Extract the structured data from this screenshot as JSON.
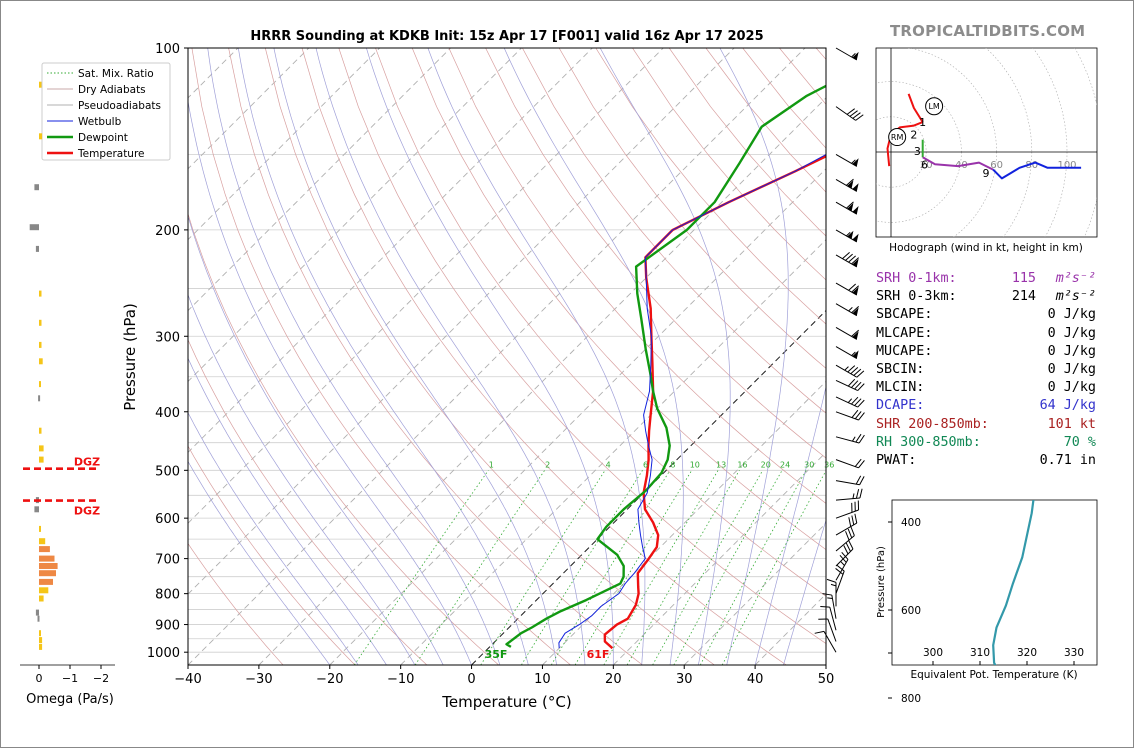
{
  "title": "HRRR Sounding at KDKB Init: 15z Apr 17 [F001] valid 16z Apr 17 2025",
  "brand": "TROPICALTIDBITS.COM",
  "colors": {
    "temperature": "#ee1111",
    "dewpoint": "#119911",
    "wetbulb": "#1122dd",
    "dry_adiabat": "#d8a0a0",
    "pseudoadiabat": "#a0a0d8",
    "mix_ratio": "#33aa33",
    "srh1": "#9933aa",
    "dcape": "#3333cc",
    "shr": "#aa2222",
    "rh": "#118855",
    "theta_e": "#3399aa",
    "omega_yellow": "#f5c518",
    "omega_orange": "#ee8844",
    "omega_gray": "#888888",
    "dgz": "#ee1111"
  },
  "chart_data": [
    {
      "id": "skewt",
      "type": "line",
      "xlabel": "Temperature (°C)",
      "ylabel": "Pressure (hPa)",
      "xlim": [
        -40,
        50
      ],
      "ylim": [
        1050,
        100
      ],
      "yscale": "log",
      "x_ticks": [
        -40,
        -30,
        -20,
        -10,
        0,
        10,
        20,
        30,
        40,
        50
      ],
      "x_tick_labels": [
        "−40",
        "−30",
        "−20",
        "−10",
        "0",
        "10",
        "20",
        "30",
        "40",
        "50"
      ],
      "y_ticks": [
        100,
        200,
        300,
        400,
        500,
        600,
        700,
        800,
        900,
        1000
      ],
      "y_tick_labels": [
        "100",
        "200",
        "300",
        "400",
        "500",
        "600",
        "700",
        "800",
        "900",
        "1000"
      ],
      "legend": {
        "position": "top-left",
        "entries": [
          "Sat. Mix. Ratio",
          "Dry Adiabats",
          "Pseudoadiabats",
          "Wetbulb",
          "Dewpoint",
          "Temperature"
        ]
      },
      "mix_ratio_labels": [
        "1",
        "2",
        "4",
        "6",
        "8",
        "10",
        "13",
        "16",
        "20",
        "24",
        "30",
        "36"
      ],
      "series": [
        {
          "name": "Temperature",
          "points": [
            [
              17.5,
              985
            ],
            [
              15.5,
              960
            ],
            [
              14.5,
              935
            ],
            [
              14.8,
              900
            ],
            [
              15.5,
              880
            ],
            [
              14.7,
              835
            ],
            [
              13.5,
              800
            ],
            [
              12.5,
              780
            ],
            [
              10.5,
              740
            ],
            [
              10,
              700
            ],
            [
              9.5,
              670
            ],
            [
              8,
              640
            ],
            [
              5.5,
              610
            ],
            [
              2.5,
              580
            ],
            [
              0,
              545
            ],
            [
              -2,
              510
            ],
            [
              -4,
              480
            ],
            [
              -6,
              455
            ],
            [
              -8,
              430
            ],
            [
              -10,
              405
            ],
            [
              -13,
              370
            ],
            [
              -17,
              333
            ],
            [
              -21,
              300
            ],
            [
              -25,
              270
            ],
            [
              -30,
              240
            ],
            [
              -33,
              222
            ],
            [
              -33,
              200
            ],
            [
              -29,
              180
            ],
            [
              -24,
              160
            ],
            [
              -21.5,
              150
            ],
            [
              -18,
              133
            ],
            [
              -15,
              120
            ],
            [
              -12,
              108
            ],
            [
              -10,
              100
            ]
          ]
        },
        {
          "name": "Dewpoint",
          "points": [
            [
              3,
              980
            ],
            [
              2,
              970
            ],
            [
              2.5,
              930
            ],
            [
              3.2,
              910
            ],
            [
              4,
              880
            ],
            [
              5,
              855
            ],
            [
              7,
              820
            ],
            [
              8,
              800
            ],
            [
              9.5,
              770
            ],
            [
              9,
              750
            ],
            [
              7.5,
              720
            ],
            [
              5,
              690
            ],
            [
              0,
              650
            ],
            [
              -0.5,
              620
            ],
            [
              -0.5,
              580
            ],
            [
              0,
              540
            ],
            [
              -0.3,
              505
            ],
            [
              -1.3,
              480
            ],
            [
              -3,
              455
            ],
            [
              -6,
              425
            ],
            [
              -10,
              395
            ],
            [
              -13,
              370
            ],
            [
              -16,
              345
            ],
            [
              -20,
              315
            ],
            [
              -25,
              280
            ],
            [
              -29,
              255
            ],
            [
              -33,
              230
            ],
            [
              -31,
              200
            ],
            [
              -31,
              180
            ],
            [
              -33,
              155
            ],
            [
              -35,
              135
            ],
            [
              -33,
              120
            ],
            [
              -29,
              107
            ],
            [
              -27,
              100
            ]
          ]
        },
        {
          "name": "Wetbulb",
          "points": [
            [
              10,
              985
            ],
            [
              9.2,
              965
            ],
            [
              8.7,
              930
            ],
            [
              9.5,
              900
            ],
            [
              10,
              870
            ],
            [
              10,
              840
            ],
            [
              10.7,
              800
            ],
            [
              10.2,
              770
            ],
            [
              10,
              740
            ],
            [
              9.5,
              700
            ],
            [
              7.5,
              670
            ],
            [
              5.5,
              640
            ],
            [
              3.5,
              610
            ],
            [
              1.5,
              580
            ],
            [
              0.5,
              545
            ],
            [
              -1.5,
              510
            ],
            [
              -3.5,
              480
            ],
            [
              -6,
              455
            ],
            [
              -8.5,
              430
            ],
            [
              -11,
              405
            ],
            [
              -13.5,
              370
            ],
            [
              -17,
              335
            ],
            [
              -21,
              300
            ],
            [
              -25.5,
              270
            ],
            [
              -30,
              240
            ],
            [
              -33,
              222
            ],
            [
              -33,
              200
            ],
            [
              -29,
              180
            ],
            [
              -24,
              160
            ],
            [
              -22,
              150
            ],
            [
              -18.5,
              133
            ],
            [
              -15.5,
              120
            ],
            [
              -12.5,
              108
            ],
            [
              -10.5,
              100
            ]
          ]
        }
      ],
      "surface_labels": {
        "dewpoint": "35F",
        "temperature": "61F"
      }
    },
    {
      "id": "omega",
      "type": "bar",
      "xlabel": "Omega (Pa/s)",
      "x_ticks": [
        0,
        -1,
        -2
      ],
      "x_tick_labels": [
        "0",
        "−1",
        "−2"
      ],
      "ylim": [
        1050,
        100
      ],
      "values": [
        [
          115,
          -0.08
        ],
        [
          140,
          -0.1
        ],
        [
          170,
          0.15
        ],
        [
          198,
          0.3
        ],
        [
          215,
          0.1
        ],
        [
          255,
          -0.08
        ],
        [
          285,
          -0.08
        ],
        [
          310,
          -0.08
        ],
        [
          330,
          -0.12
        ],
        [
          360,
          -0.05
        ],
        [
          380,
          0.03
        ],
        [
          430,
          -0.08
        ],
        [
          460,
          -0.15
        ],
        [
          480,
          -0.15
        ],
        [
          560,
          0.1
        ],
        [
          580,
          0.15
        ],
        [
          625,
          -0.05
        ],
        [
          655,
          -0.2
        ],
        [
          675,
          -0.35
        ],
        [
          700,
          -0.5
        ],
        [
          720,
          -0.6
        ],
        [
          740,
          -0.55
        ],
        [
          765,
          -0.45
        ],
        [
          790,
          -0.3
        ],
        [
          815,
          -0.15
        ],
        [
          860,
          0.1
        ],
        [
          880,
          0.05
        ],
        [
          930,
          -0.05
        ],
        [
          955,
          -0.1
        ],
        [
          980,
          -0.1
        ]
      ],
      "dgz": {
        "label": "DGZ",
        "top_hpa": 497,
        "bottom_hpa": 561
      }
    },
    {
      "id": "hodograph",
      "type": "line",
      "xlabel": "Hodograph (wind in kt, height in km)",
      "ring_labels": [
        "20",
        "40",
        "60",
        "80",
        "100"
      ],
      "height_labels": [
        "1",
        "2",
        "3",
        "6",
        "9"
      ],
      "markers": [
        "LM",
        "RM"
      ],
      "segments": [
        {
          "layer": "0-1km",
          "color": "#ee1111",
          "points": [
            [
              -1,
              -8
            ],
            [
              -2,
              2
            ],
            [
              0,
              10
            ],
            [
              5,
              14
            ],
            [
              13,
              15
            ],
            [
              18,
              17
            ]
          ]
        },
        {
          "layer": "1-3km",
          "color": "#ee1111",
          "points": [
            [
              18,
              17
            ],
            [
              13,
              25
            ],
            [
              10,
              33
            ]
          ]
        },
        {
          "layer": "3-6km",
          "color": "#33aa33",
          "points": [
            [
              18,
              -3
            ],
            [
              18,
              2
            ],
            [
              18,
              7
            ]
          ]
        },
        {
          "layer": "6-9km",
          "color": "#9933aa",
          "points": [
            [
              18,
              -3
            ],
            [
              25,
              -7
            ],
            [
              38,
              -8
            ],
            [
              50,
              -6
            ],
            [
              58,
              -10
            ]
          ]
        },
        {
          "layer": "9+km",
          "color": "#1122dd",
          "points": [
            [
              58,
              -10
            ],
            [
              63,
              -15
            ],
            [
              68,
              -12
            ],
            [
              73,
              -9
            ],
            [
              82,
              -6
            ],
            [
              89,
              -9
            ],
            [
              108,
              -9
            ]
          ]
        }
      ]
    },
    {
      "id": "theta_e",
      "type": "line",
      "xlabel": "Equivalent Pot. Temperature (K)",
      "ylabel": "Pressure (hPa)",
      "x_ticks": [
        "300",
        "310",
        "320",
        "330"
      ],
      "y_ticks": [
        "400",
        "600",
        "800"
      ],
      "points": [
        [
          303,
          982
        ],
        [
          301.5,
          975
        ],
        [
          301.5,
          950
        ],
        [
          302,
          930
        ],
        [
          308,
          900
        ],
        [
          313,
          860
        ],
        [
          316,
          820
        ],
        [
          316.5,
          790
        ],
        [
          315,
          760
        ],
        [
          313,
          720
        ],
        [
          312.8,
          680
        ],
        [
          313.5,
          640
        ],
        [
          315.5,
          590
        ],
        [
          317,
          540
        ],
        [
          319,
          480
        ],
        [
          320,
          430
        ],
        [
          321,
          380
        ],
        [
          321.5,
          340
        ],
        [
          322.5,
          300
        ]
      ]
    }
  ],
  "stats": [
    {
      "label": "SRH 0-1km:",
      "value": "115",
      "unit": "m²s⁻²",
      "color": "#9933aa"
    },
    {
      "label": "SRH 0-3km:",
      "value": "214",
      "unit": "m²s⁻²",
      "color": "#000000"
    },
    {
      "label": "SBCAPE:",
      "value": "0 J/kg",
      "color": "#000000"
    },
    {
      "label": "MLCAPE:",
      "value": "0 J/kg",
      "color": "#000000"
    },
    {
      "label": "MUCAPE:",
      "value": "0 J/kg",
      "color": "#000000"
    },
    {
      "label": "SBCIN:",
      "value": "0 J/kg",
      "color": "#000000"
    },
    {
      "label": "MLCIN:",
      "value": "0 J/kg",
      "color": "#000000"
    },
    {
      "label": "DCAPE:",
      "value": "64 J/kg",
      "color": "#3333cc"
    },
    {
      "label": "SHR 200-850mb:",
      "value": "101 kt",
      "color": "#aa2222"
    },
    {
      "label": "RH 300-850mb:",
      "value": "70 %",
      "color": "#118855"
    },
    {
      "label": "PWAT:",
      "value": "0.71 in",
      "color": "#000000"
    }
  ],
  "wind_barbs": [
    {
      "p": 100,
      "dir": 300,
      "kt": 55
    },
    {
      "p": 125,
      "dir": 305,
      "kt": 40
    },
    {
      "p": 150,
      "dir": 300,
      "kt": 55
    },
    {
      "p": 165,
      "dir": 300,
      "kt": 110
    },
    {
      "p": 180,
      "dir": 300,
      "kt": 110
    },
    {
      "p": 200,
      "dir": 300,
      "kt": 105
    },
    {
      "p": 220,
      "dir": 300,
      "kt": 90
    },
    {
      "p": 245,
      "dir": 300,
      "kt": 70
    },
    {
      "p": 265,
      "dir": 300,
      "kt": 65
    },
    {
      "p": 290,
      "dir": 300,
      "kt": 60
    },
    {
      "p": 312,
      "dir": 300,
      "kt": 55
    },
    {
      "p": 335,
      "dir": 300,
      "kt": 45
    },
    {
      "p": 355,
      "dir": 295,
      "kt": 40
    },
    {
      "p": 378,
      "dir": 295,
      "kt": 35
    },
    {
      "p": 400,
      "dir": 290,
      "kt": 30
    },
    {
      "p": 440,
      "dir": 285,
      "kt": 25
    },
    {
      "p": 480,
      "dir": 290,
      "kt": 20
    },
    {
      "p": 520,
      "dir": 280,
      "kt": 20
    },
    {
      "p": 560,
      "dir": 265,
      "kt": 25
    },
    {
      "p": 600,
      "dir": 250,
      "kt": 30
    },
    {
      "p": 640,
      "dir": 240,
      "kt": 30
    },
    {
      "p": 680,
      "dir": 230,
      "kt": 30
    },
    {
      "p": 720,
      "dir": 225,
      "kt": 30
    },
    {
      "p": 760,
      "dir": 210,
      "kt": 25
    },
    {
      "p": 800,
      "dir": 200,
      "kt": 20
    },
    {
      "p": 840,
      "dir": 180,
      "kt": 15
    },
    {
      "p": 880,
      "dir": 170,
      "kt": 15
    },
    {
      "p": 920,
      "dir": 165,
      "kt": 12
    },
    {
      "p": 960,
      "dir": 160,
      "kt": 10
    },
    {
      "p": 1000,
      "dir": 150,
      "kt": 8
    }
  ]
}
